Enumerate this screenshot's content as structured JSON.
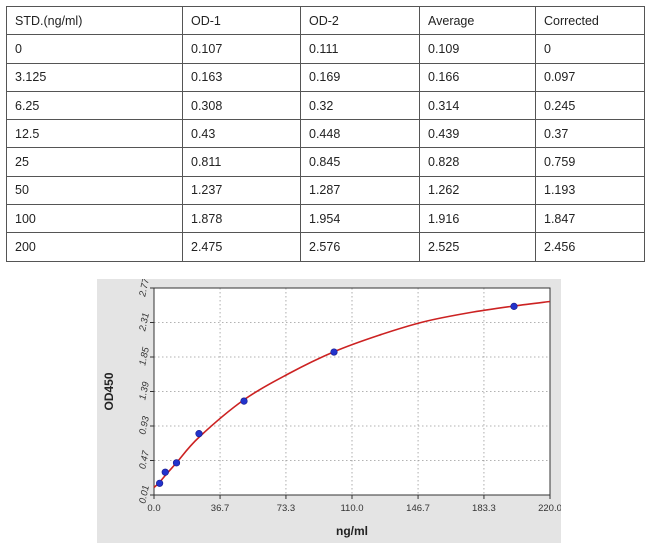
{
  "table": {
    "headers": [
      "STD.(ng/ml)",
      "OD-1",
      "OD-2",
      "Average",
      "Corrected"
    ],
    "rows": [
      [
        "0",
        "0.107",
        "0.111",
        "0.109",
        "0"
      ],
      [
        "3.125",
        "0.163",
        "0.169",
        "0.166",
        "0.097"
      ],
      [
        "6.25",
        "0.308",
        "0.32",
        "0.314",
        "0.245"
      ],
      [
        "12.5",
        "0.43",
        "0.448",
        "0.439",
        "0.37"
      ],
      [
        "25",
        "0.811",
        "0.845",
        "0.828",
        "0.759"
      ],
      [
        "50",
        "1.237",
        "1.287",
        "1.262",
        "1.193"
      ],
      [
        "100",
        "1.878",
        "1.954",
        "1.916",
        "1.847"
      ],
      [
        "200",
        "2.475",
        "2.576",
        "2.525",
        "2.456"
      ]
    ]
  },
  "chart_data": {
    "type": "scatter",
    "title": "",
    "xlabel": "ng/ml",
    "ylabel": "OD450",
    "xlim": [
      0.0,
      220.0
    ],
    "ylim": [
      0.01,
      2.77
    ],
    "xticks": [
      "0.0",
      "36.7",
      "73.3",
      "110.0",
      "146.7",
      "183.3",
      "220.0"
    ],
    "xtick_values": [
      0.0,
      36.7,
      73.3,
      110.0,
      146.7,
      183.3,
      220.0
    ],
    "yticks": [
      "0.01",
      "0.47",
      "0.93",
      "1.39",
      "1.85",
      "2.31",
      "2.77"
    ],
    "ytick_values": [
      0.01,
      0.47,
      0.93,
      1.39,
      1.85,
      2.31,
      2.77
    ],
    "grid": true,
    "points": {
      "x": [
        3.125,
        6.25,
        12.5,
        25,
        50,
        100,
        200
      ],
      "y": [
        0.166,
        0.314,
        0.439,
        0.828,
        1.262,
        1.916,
        2.525
      ]
    },
    "fit_curve": {
      "x": [
        0,
        3.125,
        6.25,
        12.5,
        25,
        50,
        75,
        100,
        125,
        150,
        175,
        200,
        220
      ],
      "y": [
        0.11,
        0.18,
        0.27,
        0.44,
        0.78,
        1.28,
        1.63,
        1.92,
        2.14,
        2.32,
        2.44,
        2.53,
        2.59
      ]
    },
    "colors": {
      "point": "#2233cc",
      "curve": "#cc2222",
      "grid": "#999999",
      "background": "#ffffff",
      "panel": "#e4e4e4"
    }
  }
}
